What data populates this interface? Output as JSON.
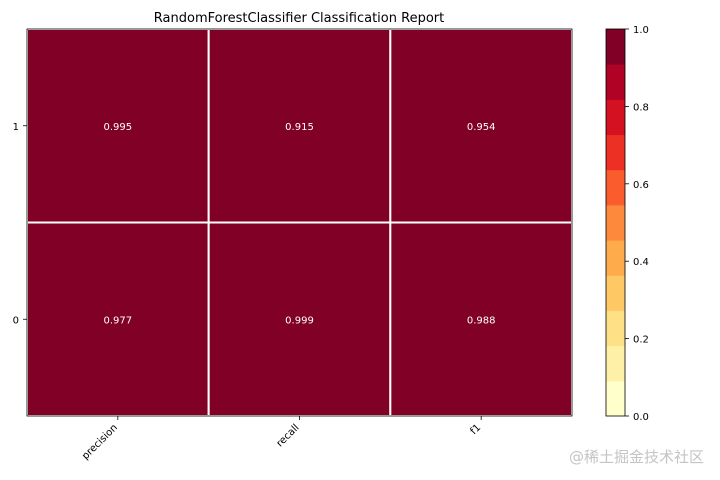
{
  "chart_data": {
    "type": "heatmap",
    "title": "RandomForestClassifier Classification Report",
    "columns": [
      "precision",
      "recall",
      "f1"
    ],
    "rows": [
      "1",
      "0"
    ],
    "values": [
      [
        0.995,
        0.915,
        0.954
      ],
      [
        0.977,
        0.999,
        0.988
      ]
    ],
    "value_labels": [
      [
        "0.995",
        "0.915",
        "0.954"
      ],
      [
        "0.977",
        "0.999",
        "0.988"
      ]
    ],
    "colorbar": {
      "range": [
        0.0,
        1.0
      ],
      "ticks": [
        "0.0",
        "0.2",
        "0.4",
        "0.6",
        "0.8",
        "1.0"
      ],
      "colors": [
        "#ffffcc",
        "#fff0a8",
        "#fee087",
        "#fec965",
        "#feab4b",
        "#fd893c",
        "#fa5c2e",
        "#ec3023",
        "#d31121",
        "#af0225",
        "#800026"
      ]
    },
    "grid": true,
    "legend": "colorbar-right"
  },
  "watermark": "@稀土掘金技术社区"
}
